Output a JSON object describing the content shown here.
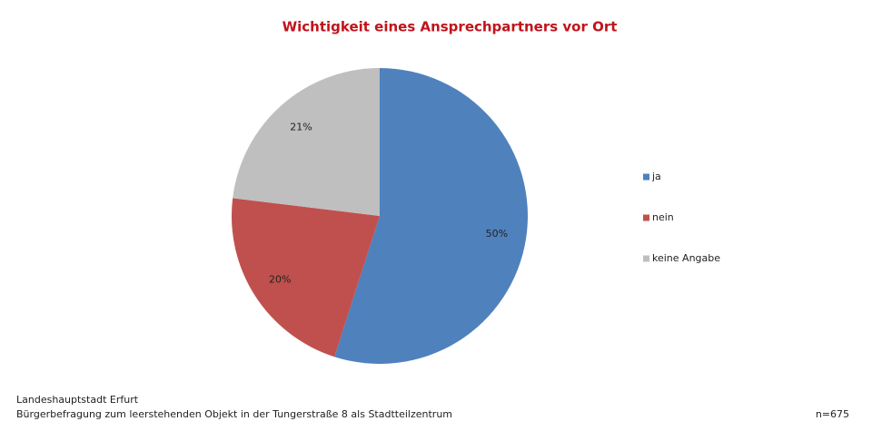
{
  "chart_data": {
    "type": "pie",
    "title": "Wichtigkeit eines Ansprechpartners vor Ort",
    "categories": [
      "ja",
      "nein",
      "keine Angabe"
    ],
    "values": [
      50,
      20,
      21
    ],
    "value_labels": [
      "50%",
      "20%",
      "21%"
    ],
    "colors": [
      "#4f81bd",
      "#c0504d",
      "#bfbfbf"
    ],
    "legend": "right"
  },
  "footer": {
    "source": "Landeshauptstadt Erfurt",
    "survey": "Bürgerbefragung zum leerstehenden Objekt in der Tungerstraße 8 als Stadtteilzentrum",
    "sample": "n=675"
  }
}
